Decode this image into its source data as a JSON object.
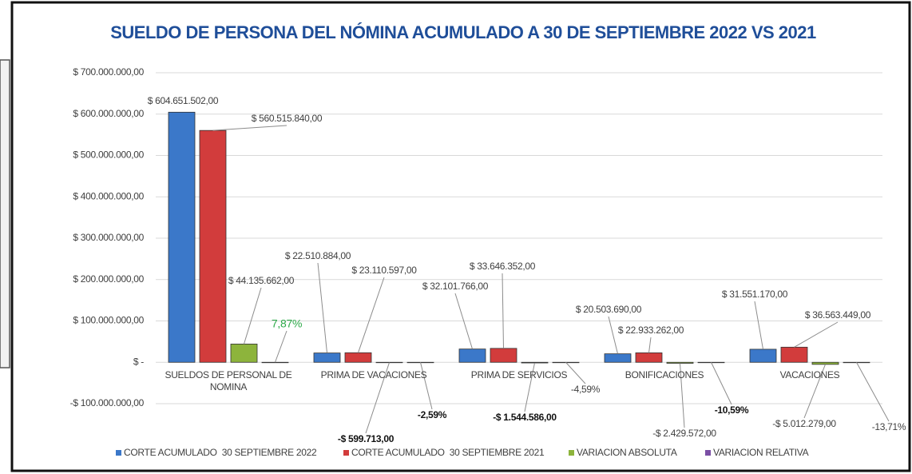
{
  "chart_data": {
    "type": "bar",
    "title": "SUELDO DE PERSONA DEL NÓMINA ACUMULADO A 30 DE SEPTIEMBRE 2022 VS 2021",
    "categories": [
      "SUELDOS DE PERSONAL DE NOMINA",
      "PRIMA DE VACACIONES",
      "PRIMA DE SERVICIOS",
      "BONIFICACIONES",
      "VACACIONES"
    ],
    "series": [
      {
        "name": "CORTE ACUMULADO  30 SEPTIEMBRE 2022",
        "color": "#3b78c9",
        "values": [
          604651502,
          22510884,
          32101766,
          20503690,
          31551170
        ],
        "value_labels": [
          "$ 604.651.502,00",
          "$ 22.510.884,00",
          "$ 32.101.766,00",
          "$ 20.503.690,00",
          "$ 31.551.170,00"
        ]
      },
      {
        "name": "CORTE ACUMULADO  30 SEPTIEMBRE 2021",
        "color": "#d23c3c",
        "values": [
          560515840,
          23110597,
          33646352,
          22933262,
          36563449
        ],
        "value_labels": [
          "$ 560.515.840,00",
          "$ 23.110.597,00",
          "$ 33.646.352,00",
          "$ 22.933.262,00",
          "$ 36.563.449,00"
        ]
      },
      {
        "name": "VARIACION ABSOLUTA",
        "color": "#8db43c",
        "values": [
          44135662,
          -599713,
          -1544586,
          -2429572,
          -5012279
        ],
        "value_labels": [
          "$ 44.135.662,00",
          "-$ 599.713,00",
          "-$ 1.544.586,00",
          "-$ 2.429.572,00",
          "-$ 5.012.279,00"
        ]
      },
      {
        "name": "VARIACION RELATIVA",
        "color": "#7b4fa5",
        "values": [
          7.87,
          -2.59,
          -4.59,
          -10.59,
          -13.71
        ],
        "value_labels": [
          "7,87%",
          "-2,59%",
          "-4,59%",
          "-10,59%",
          "-13,71%"
        ]
      }
    ],
    "ylim": [
      -100000000,
      700000000
    ],
    "yticks": [
      {
        "value": -100000000,
        "label": "-$ 100.000.000,00"
      },
      {
        "value": 0,
        "label": "$ -"
      },
      {
        "value": 100000000,
        "label": "$ 100.000.000,00"
      },
      {
        "value": 200000000,
        "label": "$ 200.000.000,00"
      },
      {
        "value": 300000000,
        "label": "$ 300.000.000,00"
      },
      {
        "value": 400000000,
        "label": "$ 400.000.000,00"
      },
      {
        "value": 500000000,
        "label": "$ 500.000.000,00"
      },
      {
        "value": 600000000,
        "label": "$ 600.000.000,00"
      },
      {
        "value": 700000000,
        "label": "$ 700.000.000,00"
      }
    ],
    "grid": true,
    "legend": "bottom"
  }
}
